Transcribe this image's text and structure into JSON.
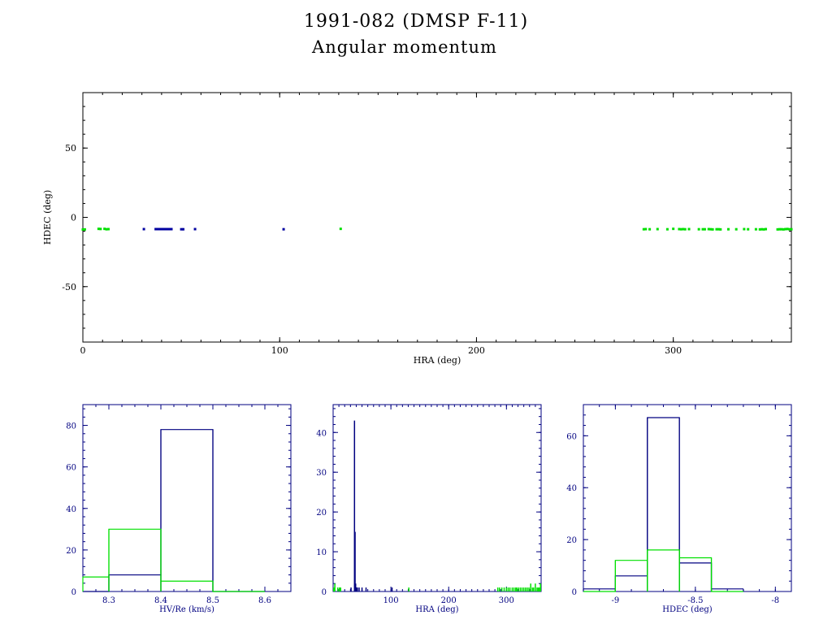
{
  "header": {
    "title": "1991-082 (DMSP F-11)",
    "subtitle": "Angular momentum"
  },
  "colors": {
    "frame": "#000000",
    "primary": "#0000a0",
    "secondary": "#00e000",
    "hist_frame": "#000080"
  },
  "chart_data": [
    {
      "type": "scatter",
      "xlabel": "HRA (deg)",
      "ylabel": "HDEC (deg)",
      "xlim": [
        0,
        360
      ],
      "ylim": [
        -90,
        90
      ],
      "xticks": [
        0,
        100,
        200,
        300
      ],
      "yticks": [
        -50,
        0,
        50
      ],
      "series": [
        {
          "color": "#0000a0",
          "points": [
            [
              31,
              -8.5
            ],
            [
              37,
              -8.5
            ],
            [
              38,
              -8.5
            ],
            [
              39,
              -8.5
            ],
            [
              40,
              -8.5
            ],
            [
              41,
              -8.5
            ],
            [
              42,
              -8.5
            ],
            [
              43,
              -8.5
            ],
            [
              44,
              -8.5
            ],
            [
              45,
              -8.5
            ],
            [
              50,
              -8.6
            ],
            [
              51,
              -8.6
            ],
            [
              57,
              -8.5
            ],
            [
              102,
              -8.6
            ]
          ]
        },
        {
          "color": "#00e000",
          "points": [
            [
              0,
              -8.8
            ],
            [
              1,
              -8.7
            ],
            [
              8,
              -8.3
            ],
            [
              9,
              -8.4
            ],
            [
              11,
              -8.3
            ],
            [
              12,
              -8.6
            ],
            [
              13,
              -8.5
            ],
            [
              131,
              -8.3
            ],
            [
              285,
              -8.6
            ],
            [
              286,
              -8.5
            ],
            [
              288,
              -8.6
            ],
            [
              292,
              -8.5
            ],
            [
              297,
              -8.6
            ],
            [
              300,
              -8.3
            ],
            [
              303,
              -8.5
            ],
            [
              304,
              -8.6
            ],
            [
              305,
              -8.5
            ],
            [
              306,
              -8.6
            ],
            [
              308,
              -8.5
            ],
            [
              313,
              -8.6
            ],
            [
              315,
              -8.6
            ],
            [
              316,
              -8.6
            ],
            [
              318,
              -8.5
            ],
            [
              319,
              -8.6
            ],
            [
              320,
              -8.7
            ],
            [
              322,
              -8.6
            ],
            [
              323,
              -8.6
            ],
            [
              324,
              -8.7
            ],
            [
              328,
              -8.6
            ],
            [
              332,
              -8.6
            ],
            [
              336,
              -8.5
            ],
            [
              338,
              -8.6
            ],
            [
              342,
              -8.6
            ],
            [
              344,
              -8.7
            ],
            [
              345,
              -8.6
            ],
            [
              346,
              -8.7
            ],
            [
              347,
              -8.5
            ],
            [
              353,
              -8.7
            ],
            [
              354,
              -8.6
            ],
            [
              355,
              -8.6
            ],
            [
              356,
              -8.7
            ],
            [
              357,
              -8.5
            ],
            [
              358,
              -8.4
            ],
            [
              359,
              -8.6
            ],
            [
              360,
              -8.6
            ]
          ]
        }
      ]
    },
    {
      "type": "bar",
      "xlabel": "HV/Re (km/s)",
      "ylabel": "",
      "xlim": [
        8.25,
        8.65
      ],
      "ylim": [
        0,
        90
      ],
      "xticks": [
        "8.3",
        "8.4",
        "8.5",
        "8.6"
      ],
      "yticks": [
        "0",
        "20",
        "40",
        "60",
        "80"
      ],
      "series": [
        {
          "color": "#000080",
          "edges": [
            8.25,
            8.3,
            8.4,
            8.5,
            8.6
          ],
          "values": [
            0,
            8,
            78,
            0
          ]
        },
        {
          "color": "#00e000",
          "edges": [
            8.25,
            8.3,
            8.4,
            8.5,
            8.6
          ],
          "values": [
            7,
            30,
            5,
            0
          ]
        }
      ]
    },
    {
      "type": "bar",
      "xlabel": "HRA (deg)",
      "ylabel": "",
      "xlim": [
        0,
        360
      ],
      "ylim": [
        0,
        47
      ],
      "xticks": [
        "100",
        "200",
        "300"
      ],
      "yticks": [
        "0",
        "10",
        "20",
        "30",
        "40"
      ],
      "series": [
        {
          "color": "#000080",
          "x": [
            31,
            37,
            38,
            39,
            40,
            41,
            42,
            45,
            50,
            57,
            102
          ],
          "values": [
            1,
            43,
            15,
            2,
            1,
            1,
            1,
            1,
            1,
            1,
            1
          ]
        },
        {
          "color": "#00e000",
          "x": [
            1,
            3,
            8,
            11,
            13,
            131,
            285,
            288,
            292,
            296,
            300,
            303,
            306,
            310,
            313,
            316,
            318,
            321,
            324,
            327,
            330,
            333,
            336,
            339,
            342,
            345,
            347,
            350,
            353,
            355,
            357,
            359
          ],
          "values": [
            1,
            2,
            1,
            1,
            1,
            1,
            1,
            1,
            1,
            1,
            1,
            1,
            1,
            1,
            1,
            1,
            1,
            1,
            1,
            1,
            1,
            1,
            1,
            1,
            2,
            1,
            1,
            2,
            1,
            1,
            1,
            2
          ]
        }
      ]
    },
    {
      "type": "bar",
      "xlabel": "HDEC (deg)",
      "ylabel": "",
      "xlim": [
        -9.2,
        -7.9
      ],
      "ylim": [
        0,
        72
      ],
      "xticks": [
        "-9",
        "-8.5",
        "-8"
      ],
      "yticks": [
        "0",
        "20",
        "40",
        "60"
      ],
      "series": [
        {
          "color": "#000080",
          "edges": [
            -9.2,
            -9.0,
            -8.8,
            -8.6,
            -8.4,
            -8.2
          ],
          "values": [
            1,
            6,
            67,
            11,
            1
          ]
        },
        {
          "color": "#00e000",
          "edges": [
            -9.2,
            -9.0,
            -8.8,
            -8.6,
            -8.4,
            -8.2
          ],
          "values": [
            0,
            12,
            16,
            13,
            0
          ]
        }
      ]
    }
  ]
}
